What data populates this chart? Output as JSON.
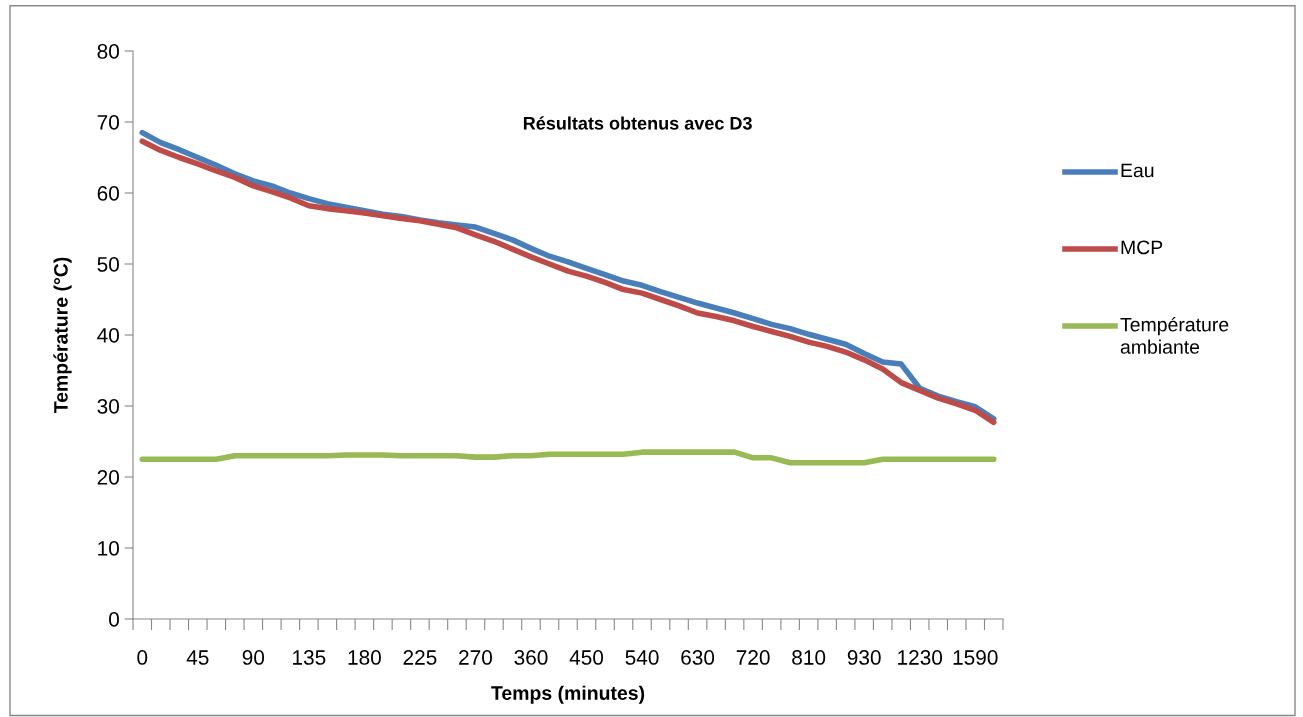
{
  "chart_data": {
    "type": "line",
    "title": "Résultats obtenus avec D3",
    "xlabel": "Temps (minutes)",
    "ylabel": "Température (°C)",
    "categories": [
      "0",
      null,
      null,
      "45",
      null,
      null,
      "90",
      null,
      null,
      "135",
      null,
      null,
      "180",
      null,
      null,
      "225",
      null,
      null,
      "270",
      null,
      null,
      "360",
      null,
      null,
      "450",
      null,
      null,
      "540",
      null,
      null,
      "630",
      null,
      null,
      "720",
      null,
      null,
      "810",
      null,
      null,
      "930",
      null,
      null,
      "1230",
      null,
      null,
      "1590",
      null
    ],
    "ylim": [
      0,
      80
    ],
    "yticks": [
      0,
      10,
      20,
      30,
      40,
      50,
      60,
      70,
      80
    ],
    "grid": false,
    "legend": "right",
    "marker": "none",
    "line_style": "solid",
    "series": [
      {
        "name": "Eau",
        "color": "#4a7ebb",
        "values": [
          68.5,
          67.1,
          66.1,
          65.0,
          63.9,
          62.7,
          61.7,
          61.0,
          60.0,
          59.2,
          58.5,
          58.0,
          57.5,
          57.0,
          56.7,
          56.2,
          55.8,
          55.5,
          55.2,
          54.3,
          53.4,
          52.2,
          51.1,
          50.3,
          49.4,
          48.5,
          47.6,
          47.0,
          46.1,
          45.3,
          44.5,
          43.8,
          43.1,
          42.3,
          41.5,
          40.9,
          40.1,
          39.4,
          38.7,
          37.4,
          36.2,
          35.9,
          32.5,
          31.4,
          30.6,
          29.9,
          28.2
        ]
      },
      {
        "name": "MCP",
        "color": "#be4b48",
        "values": [
          67.3,
          66.0,
          65.0,
          64.1,
          63.1,
          62.2,
          61.0,
          60.2,
          59.3,
          58.2,
          57.8,
          57.5,
          57.2,
          56.8,
          56.4,
          56.1,
          55.6,
          55.1,
          54.1,
          53.2,
          52.1,
          51.0,
          50.0,
          49.0,
          48.3,
          47.4,
          46.4,
          45.9,
          45.0,
          44.1,
          43.1,
          42.6,
          42.0,
          41.2,
          40.5,
          39.8,
          39.0,
          38.4,
          37.6,
          36.5,
          35.2,
          33.3,
          32.2,
          31.1,
          30.3,
          29.4,
          27.7
        ]
      },
      {
        "name": "Température ambiante",
        "color": "#98b954",
        "values": [
          22.5,
          22.5,
          22.5,
          22.5,
          22.5,
          23.0,
          23.0,
          23.0,
          23.0,
          23.0,
          23.0,
          23.1,
          23.1,
          23.1,
          23.0,
          23.0,
          23.0,
          23.0,
          22.8,
          22.8,
          23.0,
          23.0,
          23.2,
          23.2,
          23.2,
          23.2,
          23.2,
          23.5,
          23.5,
          23.5,
          23.5,
          23.5,
          23.5,
          22.7,
          22.7,
          22.0,
          22.0,
          22.0,
          22.0,
          22.0,
          22.5,
          22.5,
          22.5,
          22.5,
          22.5,
          22.5,
          22.5
        ]
      }
    ]
  }
}
